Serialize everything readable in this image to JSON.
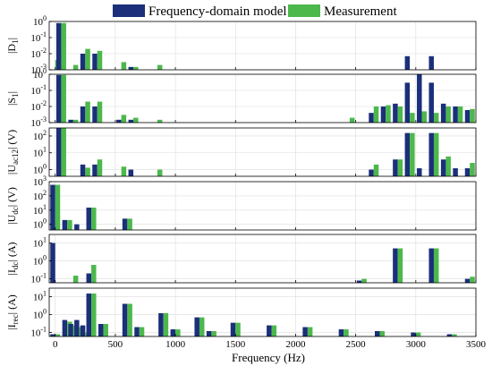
{
  "chart_data": {
    "type": "bar",
    "xlabel": "Frequency (Hz)",
    "xlim": [
      -50,
      3500
    ],
    "xticks": [
      0,
      500,
      1000,
      1500,
      2000,
      2500,
      3000,
      3500
    ],
    "legend": {
      "placement": "top-center",
      "entries": [
        "Frequency-domain model",
        "Measurement"
      ]
    },
    "series_colors": [
      "#1b2f7a",
      "#4cb84c"
    ],
    "grid": true,
    "panels": [
      {
        "ylabel_main": "|D",
        "ylabel_sub": "1",
        "ylabel_tail": "|",
        "yscale": "log",
        "ylim": [
          0.001,
          1
        ],
        "yticks": [
          {
            "v": 1,
            "m": "10",
            "e": "0"
          },
          {
            "v": 0.1,
            "m": "10",
            "e": "-1"
          },
          {
            "v": 0.01,
            "m": "10",
            "e": "-2"
          },
          {
            "v": 0.001,
            "m": "10",
            "e": "-3"
          }
        ],
        "bars": [
          {
            "f": 0,
            "model": 0.0,
            "meas": 0.004
          },
          {
            "f": 50,
            "model": 0.8,
            "meas": 0.8
          },
          {
            "f": 150,
            "model": 0.0,
            "meas": 0.002
          },
          {
            "f": 250,
            "model": 0.01,
            "meas": 0.02
          },
          {
            "f": 350,
            "model": 0.01,
            "meas": 0.015
          },
          {
            "f": 550,
            "model": 0.0,
            "meas": 0.003
          },
          {
            "f": 650,
            "model": 0.0015,
            "meas": 0.0015
          },
          {
            "f": 850,
            "model": 0.0,
            "meas": 0.002
          },
          {
            "f": 2950,
            "model": 0.007,
            "meas": 0.0
          },
          {
            "f": 3150,
            "model": 0.007,
            "meas": 0.0
          }
        ]
      },
      {
        "ylabel_main": "|S",
        "ylabel_sub": "1",
        "ylabel_tail": "|",
        "yscale": "log",
        "ylim": [
          0.001,
          1
        ],
        "yticks": [
          {
            "v": 1,
            "m": "10",
            "e": "0"
          },
          {
            "v": 0.1,
            "m": "10",
            "e": "-1"
          },
          {
            "v": 0.01,
            "m": "10",
            "e": "-2"
          },
          {
            "v": 0.001,
            "m": "10",
            "e": "-3"
          }
        ],
        "bars": [
          {
            "f": 50,
            "model": 0.9,
            "meas": 0.9
          },
          {
            "f": 150,
            "model": 0.0015,
            "meas": 0.0015
          },
          {
            "f": 250,
            "model": 0.01,
            "meas": 0.02
          },
          {
            "f": 350,
            "model": 0.01,
            "meas": 0.02
          },
          {
            "f": 550,
            "model": 0.0015,
            "meas": 0.003
          },
          {
            "f": 650,
            "model": 0.0015,
            "meas": 0.002
          },
          {
            "f": 850,
            "model": 0.0,
            "meas": 0.0015
          },
          {
            "f": 2450,
            "model": 0.0,
            "meas": 0.002
          },
          {
            "f": 2650,
            "model": 0.004,
            "meas": 0.01
          },
          {
            "f": 2750,
            "model": 0.01,
            "meas": 0.012
          },
          {
            "f": 2850,
            "model": 0.015,
            "meas": 0.01
          },
          {
            "f": 2950,
            "model": 0.3,
            "meas": 0.004
          },
          {
            "f": 3050,
            "model": 1.0,
            "meas": 0.005
          },
          {
            "f": 3150,
            "model": 0.3,
            "meas": 0.004
          },
          {
            "f": 3250,
            "model": 0.015,
            "meas": 0.01
          },
          {
            "f": 3350,
            "model": 0.01,
            "meas": 0.01
          },
          {
            "f": 3450,
            "model": 0.006,
            "meas": 0.007
          }
        ]
      },
      {
        "ylabel_main": "|U",
        "ylabel_sub": "ac12",
        "ylabel_tail": "| (V)",
        "yscale": "log",
        "ylim": [
          0.4,
          300
        ],
        "yticks": [
          {
            "v": 100,
            "m": "10",
            "e": "2"
          },
          {
            "v": 10,
            "m": "10",
            "e": "1"
          },
          {
            "v": 1,
            "m": "10",
            "e": "0"
          }
        ],
        "bars": [
          {
            "f": 50,
            "model": 300,
            "meas": 300
          },
          {
            "f": 250,
            "model": 2,
            "meas": 1.3
          },
          {
            "f": 350,
            "model": 2,
            "meas": 4
          },
          {
            "f": 550,
            "model": 0.0,
            "meas": 1.5
          },
          {
            "f": 650,
            "model": 1.0,
            "meas": 0.0
          },
          {
            "f": 850,
            "model": 0.0,
            "meas": 1.0
          },
          {
            "f": 2650,
            "model": 1.0,
            "meas": 2
          },
          {
            "f": 2850,
            "model": 4,
            "meas": 4
          },
          {
            "f": 2950,
            "model": 150,
            "meas": 150
          },
          {
            "f": 3050,
            "model": 1.2,
            "meas": 0.0
          },
          {
            "f": 3150,
            "model": 150,
            "meas": 150
          },
          {
            "f": 3250,
            "model": 4,
            "meas": 6
          },
          {
            "f": 3350,
            "model": 1.2,
            "meas": 0.0
          },
          {
            "f": 3450,
            "model": 1.2,
            "meas": 2.5
          }
        ]
      },
      {
        "ylabel_main": "|U",
        "ylabel_sub": "dc",
        "ylabel_tail": "| (V)",
        "yscale": "log",
        "ylim": [
          0.4,
          1000
        ],
        "yticks": [
          {
            "v": 1000,
            "m": "10",
            "e": "3"
          },
          {
            "v": 100,
            "m": "10",
            "e": "2"
          },
          {
            "v": 10,
            "m": "10",
            "e": "1"
          },
          {
            "v": 1,
            "m": "10",
            "e": "0"
          }
        ],
        "bars": [
          {
            "f": 0,
            "model": 600,
            "meas": 600
          },
          {
            "f": 100,
            "model": 2,
            "meas": 2
          },
          {
            "f": 200,
            "model": 1.0,
            "meas": 0.0
          },
          {
            "f": 300,
            "model": 15,
            "meas": 15
          },
          {
            "f": 600,
            "model": 2.5,
            "meas": 2.5
          }
        ]
      },
      {
        "ylabel_main": "|I",
        "ylabel_sub": "dc",
        "ylabel_tail": "| (A)",
        "yscale": "log",
        "ylim": [
          0.06,
          30
        ],
        "yticks": [
          {
            "v": 10,
            "m": "10",
            "e": "1"
          },
          {
            "v": 1,
            "m": "10",
            "e": "0"
          },
          {
            "v": 0.1,
            "m": "10",
            "e": "-1"
          }
        ],
        "bars": [
          {
            "f": 0,
            "model": 10,
            "meas": 0.0
          },
          {
            "f": 150,
            "model": 0.0,
            "meas": 0.15
          },
          {
            "f": 300,
            "model": 0.2,
            "meas": 0.6
          },
          {
            "f": 2550,
            "model": 0.08,
            "meas": 0.1
          },
          {
            "f": 2850,
            "model": 5,
            "meas": 5
          },
          {
            "f": 3150,
            "model": 5,
            "meas": 5
          },
          {
            "f": 3450,
            "model": 0.1,
            "meas": 0.13
          }
        ]
      },
      {
        "ylabel_main": "|I",
        "ylabel_sub": "rec",
        "ylabel_tail": "| (A)",
        "yscale": "log",
        "ylim": [
          0.06,
          30
        ],
        "yticks": [
          {
            "v": 10,
            "m": "10",
            "e": "1"
          },
          {
            "v": 1,
            "m": "10",
            "e": "0"
          },
          {
            "v": 0.1,
            "m": "10",
            "e": "-1"
          }
        ],
        "bars": [
          {
            "f": 0,
            "model": 0.08,
            "meas": 0.08
          },
          {
            "f": 100,
            "model": 0.5,
            "meas": 0.4
          },
          {
            "f": 150,
            "model": 0.3,
            "meas": 0.25
          },
          {
            "f": 200,
            "model": 0.5,
            "meas": 0.2
          },
          {
            "f": 250,
            "model": 0.25,
            "meas": 0.1
          },
          {
            "f": 300,
            "model": 15,
            "meas": 15
          },
          {
            "f": 400,
            "model": 0.3,
            "meas": 0.3
          },
          {
            "f": 600,
            "model": 4,
            "meas": 4
          },
          {
            "f": 700,
            "model": 0.2,
            "meas": 0.2
          },
          {
            "f": 900,
            "model": 1.2,
            "meas": 1.2
          },
          {
            "f": 1000,
            "model": 0.15,
            "meas": 0.15
          },
          {
            "f": 1200,
            "model": 0.7,
            "meas": 0.7
          },
          {
            "f": 1300,
            "model": 0.12,
            "meas": 0.12
          },
          {
            "f": 1500,
            "model": 0.35,
            "meas": 0.35
          },
          {
            "f": 1800,
            "model": 0.25,
            "meas": 0.25
          },
          {
            "f": 2100,
            "model": 0.2,
            "meas": 0.2
          },
          {
            "f": 2400,
            "model": 0.15,
            "meas": 0.15
          },
          {
            "f": 2700,
            "model": 0.12,
            "meas": 0.12
          },
          {
            "f": 3000,
            "model": 0.1,
            "meas": 0.1
          },
          {
            "f": 3300,
            "model": 0.08,
            "meas": 0.08
          }
        ]
      }
    ]
  }
}
